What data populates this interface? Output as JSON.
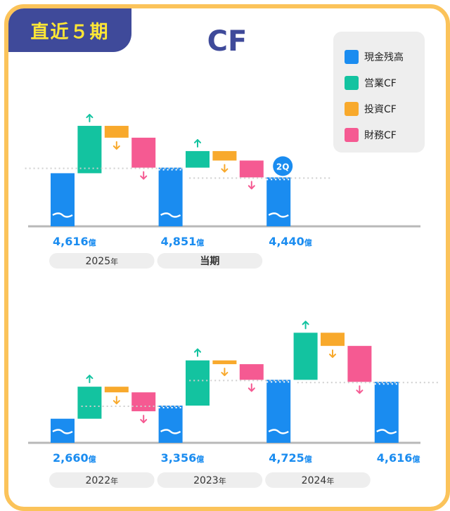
{
  "badge": "直近５期",
  "title": "CF",
  "legend": [
    {
      "label": "現金残高",
      "color": "#1a8cf0"
    },
    {
      "label": "営業CF",
      "color": "#13c3a0"
    },
    {
      "label": "投資CF",
      "color": "#f8a92c"
    },
    {
      "label": "財務CF",
      "color": "#f55a92"
    }
  ],
  "chart_data": [
    {
      "type": "waterfall",
      "title": "",
      "unit": "億",
      "bars": [
        {
          "kind": "cash",
          "value": 4616,
          "label": "4,616",
          "unit": "億"
        },
        {
          "kind": "op",
          "delta": 2000
        },
        {
          "kind": "inv",
          "delta": -500
        },
        {
          "kind": "fin",
          "delta": -1265
        },
        {
          "kind": "cash",
          "value": 4851,
          "label": "4,851",
          "unit": "億"
        },
        {
          "kind": "op",
          "delta": 700
        },
        {
          "kind": "inv",
          "delta": -400
        },
        {
          "kind": "fin",
          "delta": -711
        },
        {
          "kind": "cash",
          "value": 4440,
          "label": "4,440",
          "unit": "億",
          "badge": "2Q"
        }
      ],
      "periods": [
        {
          "label": "2025",
          "suffix": "年",
          "span": [
            0,
            4
          ]
        },
        {
          "label": "当期",
          "suffix": "",
          "span": [
            4,
            8
          ]
        }
      ]
    },
    {
      "type": "waterfall",
      "title": "",
      "unit": "億",
      "bars": [
        {
          "kind": "cash",
          "value": 2660,
          "label": "2,660",
          "unit": "億"
        },
        {
          "kind": "op",
          "delta": 1700
        },
        {
          "kind": "inv",
          "delta": -300
        },
        {
          "kind": "fin",
          "delta": -1004
        },
        {
          "kind": "cash",
          "value": 3356,
          "label": "3,356",
          "unit": "億"
        },
        {
          "kind": "op",
          "delta": 2400
        },
        {
          "kind": "inv",
          "delta": -200
        },
        {
          "kind": "fin",
          "delta": -831
        },
        {
          "kind": "cash",
          "value": 4725,
          "label": "4,725",
          "unit": "億"
        },
        {
          "kind": "op",
          "delta": 2500
        },
        {
          "kind": "inv",
          "delta": -700
        },
        {
          "kind": "fin",
          "delta": -1909
        },
        {
          "kind": "cash",
          "value": 4616,
          "label": "4,616",
          "unit": "億"
        }
      ],
      "periods": [
        {
          "label": "2022",
          "suffix": "年",
          "span": [
            0,
            4
          ]
        },
        {
          "label": "2023",
          "suffix": "年",
          "span": [
            4,
            8
          ]
        },
        {
          "label": "2024",
          "suffix": "年",
          "span": [
            8,
            12
          ]
        }
      ]
    }
  ]
}
